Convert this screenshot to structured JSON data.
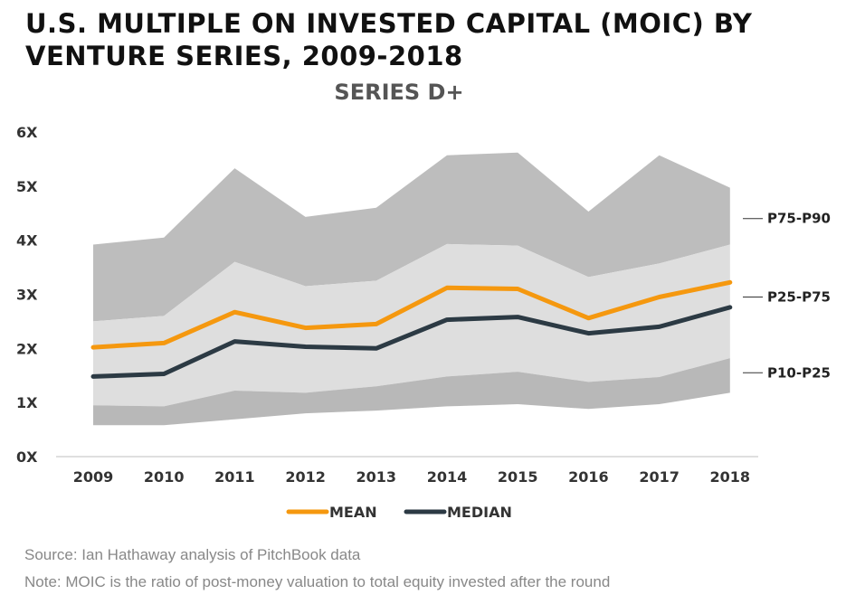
{
  "title_lines": [
    "U.S. MULTIPLE ON INVESTED CAPITAL (MOIC) BY",
    "VENTURE SERIES, 2009-2018"
  ],
  "source": "Source: Ian Hathaway analysis of PitchBook data",
  "note": "Note: MOIC is the ratio of post-money valuation to total equity invested after the round",
  "colors": {
    "band_outer": "#bdbdbd",
    "band_middle": "#dedede",
    "band_inner": "#b8b8b8",
    "mean": "#f5980f",
    "median": "#2c3a44",
    "axis": "#cccccc"
  },
  "chart_data": {
    "type": "line",
    "title": "U.S. MULTIPLE ON INVESTED CAPITAL (MOIC) BY VENTURE SERIES, 2009-2018",
    "subtitle": "SERIES D+",
    "categories": [
      "2009",
      "2010",
      "2011",
      "2012",
      "2013",
      "2014",
      "2015",
      "2016",
      "2017",
      "2018"
    ],
    "ylim": [
      0,
      6
    ],
    "yticks": [
      0,
      1,
      2,
      3,
      4,
      5,
      6
    ],
    "ytick_labels": [
      "0X",
      "1X",
      "2X",
      "3X",
      "4X",
      "5X",
      "6X"
    ],
    "grid": false,
    "series": [
      {
        "name": "MEAN",
        "values": [
          2.02,
          2.1,
          2.67,
          2.38,
          2.45,
          3.12,
          3.1,
          2.56,
          2.95,
          3.22
        ]
      },
      {
        "name": "MEDIAN",
        "values": [
          1.48,
          1.53,
          2.13,
          2.03,
          2.0,
          2.53,
          2.58,
          2.28,
          2.4,
          2.76
        ]
      }
    ],
    "bands": [
      {
        "name": "P75-P90",
        "label": "P75-P90",
        "lower": [
          2.5,
          2.6,
          3.6,
          3.15,
          3.25,
          3.93,
          3.9,
          3.32,
          3.57,
          3.92
        ],
        "upper": [
          3.92,
          4.05,
          5.33,
          4.43,
          4.6,
          5.57,
          5.62,
          4.53,
          5.57,
          4.97
        ]
      },
      {
        "name": "P25-P75",
        "label": "P25-P75",
        "lower": [
          0.95,
          0.93,
          1.22,
          1.18,
          1.3,
          1.48,
          1.57,
          1.38,
          1.47,
          1.82
        ],
        "upper": [
          2.5,
          2.6,
          3.6,
          3.15,
          3.25,
          3.93,
          3.9,
          3.32,
          3.57,
          3.92
        ]
      },
      {
        "name": "P10-P25",
        "label": "P10-P25",
        "lower": [
          0.58,
          0.58,
          0.69,
          0.8,
          0.85,
          0.93,
          0.97,
          0.88,
          0.97,
          1.18
        ],
        "upper": [
          0.95,
          0.93,
          1.22,
          1.18,
          1.3,
          1.48,
          1.57,
          1.38,
          1.47,
          1.82
        ]
      }
    ],
    "band_label_positions": [
      4.4,
      2.95,
      1.55
    ],
    "legend": [
      "MEAN",
      "MEDIAN"
    ],
    "legend_position": "bottom-center"
  }
}
